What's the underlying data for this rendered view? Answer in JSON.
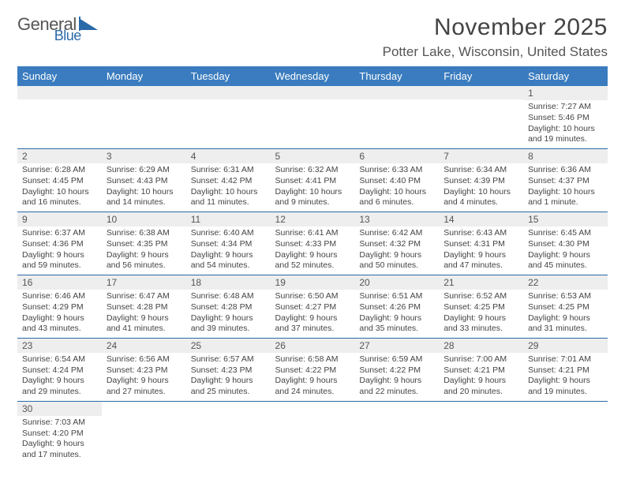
{
  "logo": {
    "text1": "General",
    "text2": "Blue"
  },
  "title": "November 2025",
  "location": "Potter Lake, Wisconsin, United States",
  "colors": {
    "header_bg": "#3a7cbf",
    "header_text": "#ffffff",
    "daynum_bg": "#eeeeee",
    "row_border": "#2b6aa8",
    "logo_accent": "#2b6aa8",
    "body_text": "#444444"
  },
  "columns": [
    "Sunday",
    "Monday",
    "Tuesday",
    "Wednesday",
    "Thursday",
    "Friday",
    "Saturday"
  ],
  "weeks": [
    [
      {
        "empty": true
      },
      {
        "empty": true
      },
      {
        "empty": true
      },
      {
        "empty": true
      },
      {
        "empty": true
      },
      {
        "empty": true
      },
      {
        "day": "1",
        "sunrise": "Sunrise: 7:27 AM",
        "sunset": "Sunset: 5:46 PM",
        "daylight": "Daylight: 10 hours and 19 minutes."
      }
    ],
    [
      {
        "day": "2",
        "sunrise": "Sunrise: 6:28 AM",
        "sunset": "Sunset: 4:45 PM",
        "daylight": "Daylight: 10 hours and 16 minutes."
      },
      {
        "day": "3",
        "sunrise": "Sunrise: 6:29 AM",
        "sunset": "Sunset: 4:43 PM",
        "daylight": "Daylight: 10 hours and 14 minutes."
      },
      {
        "day": "4",
        "sunrise": "Sunrise: 6:31 AM",
        "sunset": "Sunset: 4:42 PM",
        "daylight": "Daylight: 10 hours and 11 minutes."
      },
      {
        "day": "5",
        "sunrise": "Sunrise: 6:32 AM",
        "sunset": "Sunset: 4:41 PM",
        "daylight": "Daylight: 10 hours and 9 minutes."
      },
      {
        "day": "6",
        "sunrise": "Sunrise: 6:33 AM",
        "sunset": "Sunset: 4:40 PM",
        "daylight": "Daylight: 10 hours and 6 minutes."
      },
      {
        "day": "7",
        "sunrise": "Sunrise: 6:34 AM",
        "sunset": "Sunset: 4:39 PM",
        "daylight": "Daylight: 10 hours and 4 minutes."
      },
      {
        "day": "8",
        "sunrise": "Sunrise: 6:36 AM",
        "sunset": "Sunset: 4:37 PM",
        "daylight": "Daylight: 10 hours and 1 minute."
      }
    ],
    [
      {
        "day": "9",
        "sunrise": "Sunrise: 6:37 AM",
        "sunset": "Sunset: 4:36 PM",
        "daylight": "Daylight: 9 hours and 59 minutes."
      },
      {
        "day": "10",
        "sunrise": "Sunrise: 6:38 AM",
        "sunset": "Sunset: 4:35 PM",
        "daylight": "Daylight: 9 hours and 56 minutes."
      },
      {
        "day": "11",
        "sunrise": "Sunrise: 6:40 AM",
        "sunset": "Sunset: 4:34 PM",
        "daylight": "Daylight: 9 hours and 54 minutes."
      },
      {
        "day": "12",
        "sunrise": "Sunrise: 6:41 AM",
        "sunset": "Sunset: 4:33 PM",
        "daylight": "Daylight: 9 hours and 52 minutes."
      },
      {
        "day": "13",
        "sunrise": "Sunrise: 6:42 AM",
        "sunset": "Sunset: 4:32 PM",
        "daylight": "Daylight: 9 hours and 50 minutes."
      },
      {
        "day": "14",
        "sunrise": "Sunrise: 6:43 AM",
        "sunset": "Sunset: 4:31 PM",
        "daylight": "Daylight: 9 hours and 47 minutes."
      },
      {
        "day": "15",
        "sunrise": "Sunrise: 6:45 AM",
        "sunset": "Sunset: 4:30 PM",
        "daylight": "Daylight: 9 hours and 45 minutes."
      }
    ],
    [
      {
        "day": "16",
        "sunrise": "Sunrise: 6:46 AM",
        "sunset": "Sunset: 4:29 PM",
        "daylight": "Daylight: 9 hours and 43 minutes."
      },
      {
        "day": "17",
        "sunrise": "Sunrise: 6:47 AM",
        "sunset": "Sunset: 4:28 PM",
        "daylight": "Daylight: 9 hours and 41 minutes."
      },
      {
        "day": "18",
        "sunrise": "Sunrise: 6:48 AM",
        "sunset": "Sunset: 4:28 PM",
        "daylight": "Daylight: 9 hours and 39 minutes."
      },
      {
        "day": "19",
        "sunrise": "Sunrise: 6:50 AM",
        "sunset": "Sunset: 4:27 PM",
        "daylight": "Daylight: 9 hours and 37 minutes."
      },
      {
        "day": "20",
        "sunrise": "Sunrise: 6:51 AM",
        "sunset": "Sunset: 4:26 PM",
        "daylight": "Daylight: 9 hours and 35 minutes."
      },
      {
        "day": "21",
        "sunrise": "Sunrise: 6:52 AM",
        "sunset": "Sunset: 4:25 PM",
        "daylight": "Daylight: 9 hours and 33 minutes."
      },
      {
        "day": "22",
        "sunrise": "Sunrise: 6:53 AM",
        "sunset": "Sunset: 4:25 PM",
        "daylight": "Daylight: 9 hours and 31 minutes."
      }
    ],
    [
      {
        "day": "23",
        "sunrise": "Sunrise: 6:54 AM",
        "sunset": "Sunset: 4:24 PM",
        "daylight": "Daylight: 9 hours and 29 minutes."
      },
      {
        "day": "24",
        "sunrise": "Sunrise: 6:56 AM",
        "sunset": "Sunset: 4:23 PM",
        "daylight": "Daylight: 9 hours and 27 minutes."
      },
      {
        "day": "25",
        "sunrise": "Sunrise: 6:57 AM",
        "sunset": "Sunset: 4:23 PM",
        "daylight": "Daylight: 9 hours and 25 minutes."
      },
      {
        "day": "26",
        "sunrise": "Sunrise: 6:58 AM",
        "sunset": "Sunset: 4:22 PM",
        "daylight": "Daylight: 9 hours and 24 minutes."
      },
      {
        "day": "27",
        "sunrise": "Sunrise: 6:59 AM",
        "sunset": "Sunset: 4:22 PM",
        "daylight": "Daylight: 9 hours and 22 minutes."
      },
      {
        "day": "28",
        "sunrise": "Sunrise: 7:00 AM",
        "sunset": "Sunset: 4:21 PM",
        "daylight": "Daylight: 9 hours and 20 minutes."
      },
      {
        "day": "29",
        "sunrise": "Sunrise: 7:01 AM",
        "sunset": "Sunset: 4:21 PM",
        "daylight": "Daylight: 9 hours and 19 minutes."
      }
    ],
    [
      {
        "day": "30",
        "sunrise": "Sunrise: 7:03 AM",
        "sunset": "Sunset: 4:20 PM",
        "daylight": "Daylight: 9 hours and 17 minutes."
      },
      {
        "empty": true
      },
      {
        "empty": true
      },
      {
        "empty": true
      },
      {
        "empty": true
      },
      {
        "empty": true
      },
      {
        "empty": true
      }
    ]
  ]
}
